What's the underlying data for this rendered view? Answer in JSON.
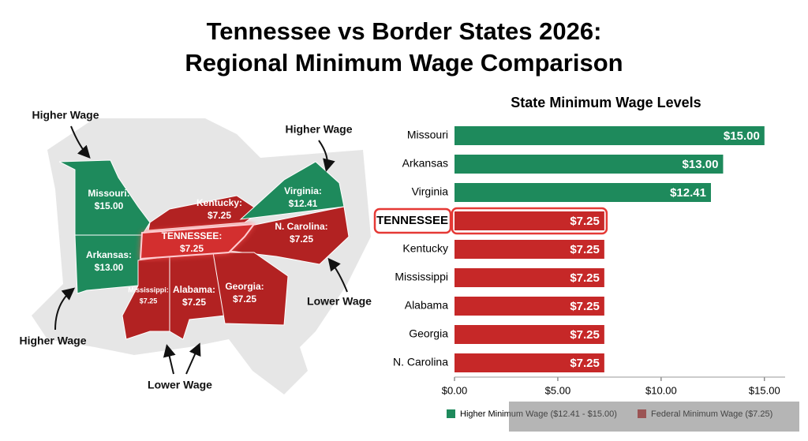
{
  "title": [
    "Tennessee vs Border States 2026:",
    "Regional Minimum Wage Comparison"
  ],
  "map": {
    "annotations": [
      "Higher Wage",
      "Higher Wage",
      "Higher Wage",
      "Lower Wage",
      "Lower Wage"
    ],
    "states": [
      {
        "label": "Missouri:",
        "wage": "$15.00"
      },
      {
        "label": "Arkansas:",
        "wage": "$13.00"
      },
      {
        "label": "Kentucky:",
        "wage": "$7.25"
      },
      {
        "label": "Virginia:",
        "wage": "$12.41"
      },
      {
        "label": "TENNESSEE:",
        "wage": "$7.25"
      },
      {
        "label": "N. Carolina:",
        "wage": "$7.25"
      },
      {
        "label": "Mississippi:",
        "wage": "$7.25"
      },
      {
        "label": "Alabama:",
        "wage": "$7.25"
      },
      {
        "label": "Georgia:",
        "wage": "$7.25"
      }
    ]
  },
  "chart_data": {
    "type": "bar",
    "orientation": "horizontal",
    "title": "State Minimum Wage Levels",
    "categories": [
      "Missouri",
      "Arkansas",
      "Virginia",
      "TENNESSEE",
      "Kentucky",
      "Mississippi",
      "Alabama",
      "Georgia",
      "N. Carolina"
    ],
    "values": [
      15,
      13,
      12.41,
      7.25,
      7.25,
      7.25,
      7.25,
      7.25,
      7.25
    ],
    "value_labels": [
      "$15.00",
      "$13.00",
      "$12.41",
      "$7.25",
      "$7.25",
      "$7.25",
      "$7.25",
      "$7.25",
      "$7.25"
    ],
    "colors": [
      "#1e8a5c",
      "#1e8a5c",
      "#1e8a5c",
      "#c62828",
      "#c62828",
      "#c62828",
      "#c62828",
      "#c62828",
      "#c62828"
    ],
    "highlight_index": 3,
    "xlim": [
      0,
      16
    ],
    "xticks": [
      {
        "value": 0,
        "label": "$0.00"
      },
      {
        "value": 5,
        "label": "$5.00"
      },
      {
        "value": 10,
        "label": "$10.00"
      },
      {
        "value": 15,
        "label": "$15.00"
      }
    ],
    "legend": [
      {
        "label": "Higher Minimum Wage ($12.41 - $15.00)",
        "color": "#1e8a5c"
      },
      {
        "label": "Federal Minimum Wage ($7.25)",
        "color": "#c62828"
      }
    ]
  }
}
